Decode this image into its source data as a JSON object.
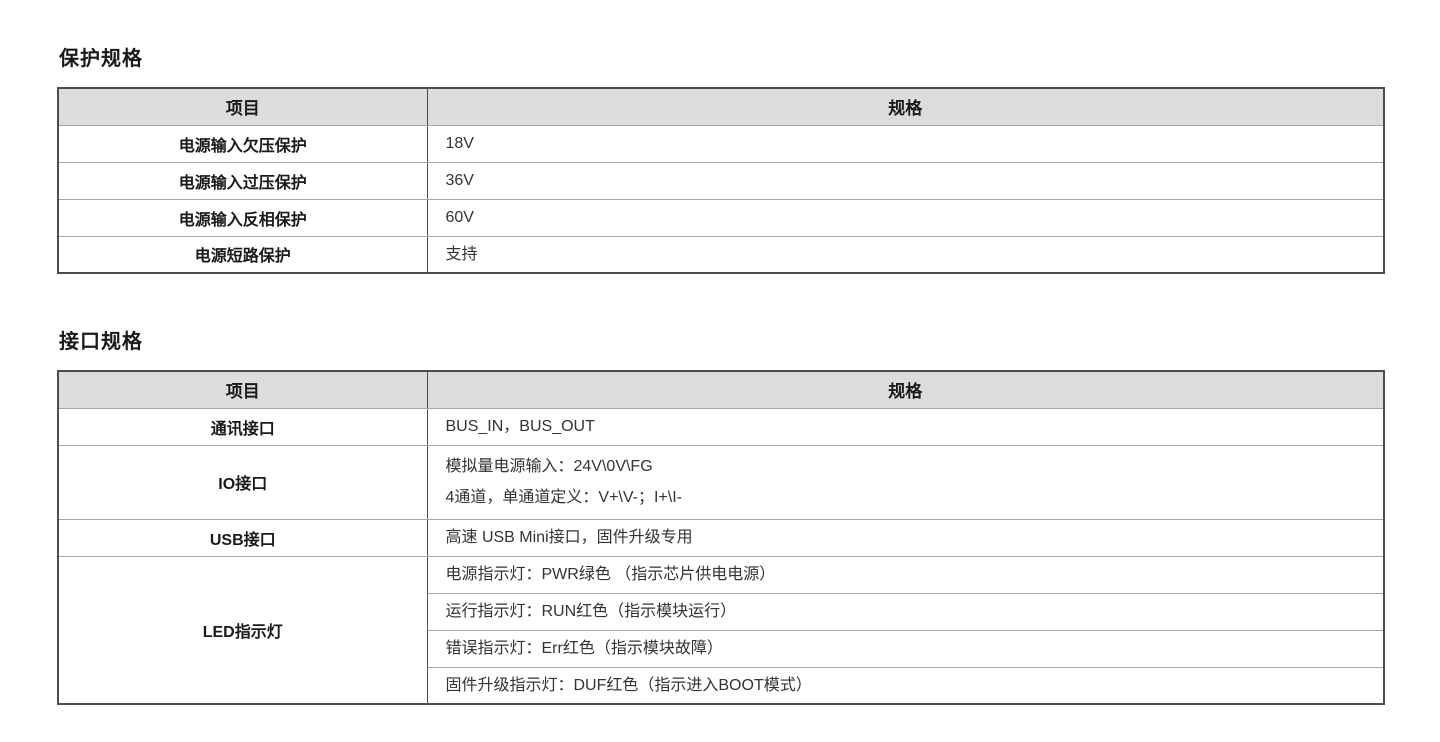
{
  "tables": [
    {
      "title": "保护规格",
      "headers": [
        "项目",
        "规格"
      ],
      "rows": [
        {
          "item": "电源输入欠压保护",
          "spec": [
            "18V"
          ]
        },
        {
          "item": "电源输入过压保护",
          "spec": [
            "36V"
          ]
        },
        {
          "item": "电源输入反相保护",
          "spec": [
            "60V"
          ]
        },
        {
          "item": "电源短路保护",
          "spec": [
            "支持"
          ]
        }
      ]
    },
    {
      "title": "接口规格",
      "headers": [
        "项目",
        "规格"
      ],
      "rows": [
        {
          "item": "通讯接口",
          "spec": [
            "BUS_IN，BUS_OUT"
          ]
        },
        {
          "item": "IO接口",
          "spec": [
            "模拟量电源输入：24V\\0V\\FG",
            "4通道，单通道定义：V+\\V-；I+\\I-"
          ]
        },
        {
          "item": "USB接口",
          "spec": [
            "高速 USB Mini接口，固件升级专用"
          ]
        },
        {
          "item": "LED指示灯",
          "spec": [
            "电源指示灯：PWR绿色 （指示芯片供电电源）",
            "运行指示灯：RUN红色（指示模块运行）",
            "错误指示灯：Err红色（指示模块故障）",
            "固件升级指示灯：DUF红色（指示进入BOOT模式）"
          ]
        }
      ]
    }
  ],
  "colors": {
    "header_bg": "#dcdcdc",
    "outer_border": "#4d4d4d",
    "inner_horizontal_border": "#a6a6a6",
    "text": "#262626"
  }
}
